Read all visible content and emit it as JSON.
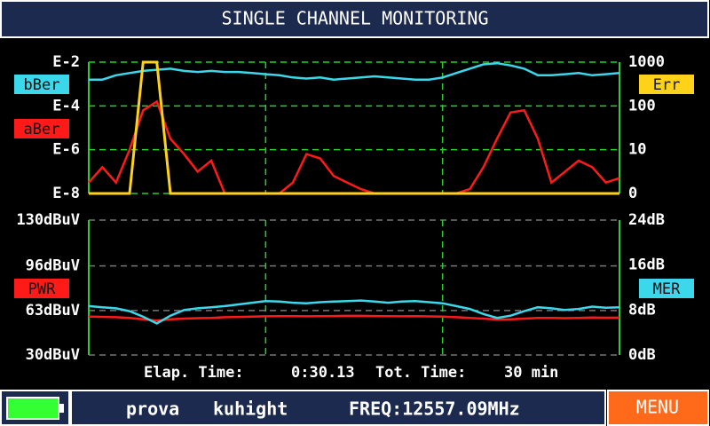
{
  "header": {
    "title": "SINGLE CHANNEL MONITORING"
  },
  "charts": [
    {
      "type": "line",
      "ylim": [
        -8,
        -2
      ],
      "yticks": [
        {
          "value": -2,
          "label": "E-2"
        },
        {
          "value": -4,
          "label": "E-4"
        },
        {
          "value": -6,
          "label": "E-6"
        },
        {
          "value": -8,
          "label": "E-8"
        }
      ],
      "y2lim": [
        0,
        1000
      ],
      "y2ticks": [
        1000,
        100,
        10,
        0
      ],
      "y2scale": "piecewise",
      "grid": true,
      "series": [
        {
          "name": "bBer",
          "color": "#3ad8ea",
          "values": [
            -2.8,
            -2.8,
            -2.6,
            -2.5,
            -2.4,
            -2.35,
            -2.3,
            -2.4,
            -2.45,
            -2.4,
            -2.45,
            -2.45,
            -2.5,
            -2.55,
            -2.6,
            -2.7,
            -2.75,
            -2.7,
            -2.8,
            -2.75,
            -2.7,
            -2.65,
            -2.7,
            -2.75,
            -2.8,
            -2.8,
            -2.7,
            -2.5,
            -2.3,
            -2.1,
            -2.05,
            -2.15,
            -2.3,
            -2.6,
            -2.6,
            -2.55,
            -2.5,
            -2.6,
            -2.55,
            -2.5
          ]
        },
        {
          "name": "aBer",
          "color": "#ff1a1a",
          "values": [
            -7.5,
            -6.8,
            -7.5,
            -6.0,
            -4.2,
            -3.8,
            -5.5,
            -6.2,
            -7.0,
            -6.5,
            -8,
            -8,
            -8,
            -8,
            -8,
            -7.5,
            -6.2,
            -6.4,
            -7.2,
            -7.5,
            -7.8,
            -8,
            -8,
            -8,
            -8,
            -8,
            -8,
            -8,
            -7.8,
            -6.8,
            -5.5,
            -4.3,
            -4.2,
            -5.5,
            -7.5,
            -7.0,
            -6.5,
            -6.8,
            -7.5,
            -7.3
          ]
        },
        {
          "name": "Err",
          "color": "#ffd21a",
          "axis": "y2",
          "values": [
            0,
            0,
            0,
            0,
            1000,
            1000,
            0,
            0,
            0,
            0,
            0,
            0,
            0,
            0,
            0,
            0,
            0,
            0,
            0,
            0,
            0,
            0,
            0,
            0,
            0,
            0,
            0,
            0,
            0,
            0,
            0,
            0,
            0,
            0,
            0,
            0,
            0,
            0,
            0,
            0
          ]
        }
      ]
    },
    {
      "type": "line",
      "ylim": [
        30,
        130
      ],
      "yticks": [
        {
          "value": 130,
          "label": "130dBuV"
        },
        {
          "value": 96,
          "label": "96dBuV"
        },
        {
          "value": 63,
          "label": "63dBuV"
        },
        {
          "value": 30,
          "label": "30dBuV"
        }
      ],
      "y2lim": [
        0,
        24
      ],
      "y2ticks": [
        {
          "value": 24,
          "label": "24dB"
        },
        {
          "value": 16,
          "label": "16dB"
        },
        {
          "value": 8,
          "label": "8dB"
        },
        {
          "value": 0,
          "label": "0dB"
        }
      ],
      "grid": true,
      "series": [
        {
          "name": "PWR",
          "color": "#ff1a1a",
          "values": [
            58.5,
            58.3,
            58,
            57.5,
            56.5,
            55.5,
            56.5,
            57,
            57.3,
            57.5,
            58,
            58.2,
            58.5,
            58.7,
            58.8,
            58.8,
            58.7,
            58.8,
            58.9,
            59,
            59,
            58.9,
            58.8,
            58.7,
            58.8,
            58.6,
            58.4,
            58,
            57.5,
            57,
            56.3,
            56.5,
            57,
            57.5,
            57.5,
            57.3,
            57.5,
            57.8,
            57.6,
            57.7
          ]
        },
        {
          "name": "MER",
          "color": "#3ad8ea",
          "axis": "y2",
          "values": [
            8.7,
            8.5,
            8.3,
            7.8,
            6.8,
            5.6,
            7.0,
            8.0,
            8.3,
            8.5,
            8.7,
            9.0,
            9.3,
            9.6,
            9.5,
            9.3,
            9.2,
            9.4,
            9.5,
            9.6,
            9.7,
            9.5,
            9.3,
            9.5,
            9.6,
            9.4,
            9.2,
            8.7,
            8.2,
            7.3,
            6.6,
            7.0,
            7.8,
            8.5,
            8.3,
            8.0,
            8.2,
            8.6,
            8.4,
            8.5
          ]
        }
      ]
    }
  ],
  "timing": {
    "elapsed_label": "Elap. Time:",
    "elapsed": "0:30.13",
    "total_label": "Tot. Time:",
    "total": "30 min"
  },
  "status": {
    "name": "prova",
    "band": "kuhight",
    "freq": "FREQ:12557.09MHz",
    "menu": "MENU"
  }
}
